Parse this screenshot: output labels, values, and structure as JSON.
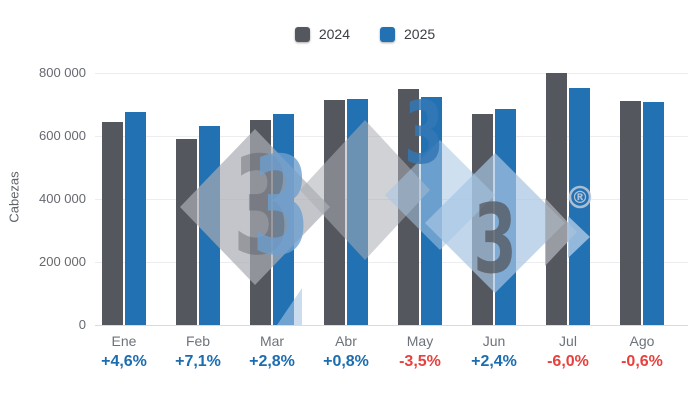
{
  "chart_data": {
    "type": "bar",
    "title": "",
    "ylabel": "Cabezas",
    "xlabel": "",
    "ylim": [
      0,
      800000
    ],
    "grid": true,
    "legend_position": "top-center",
    "categories": [
      "Ene",
      "Feb",
      "Mar",
      "Abr",
      "May",
      "Jun",
      "Jul",
      "Ago"
    ],
    "series": [
      {
        "name": "2024",
        "color": "#54575E",
        "values": [
          645000,
          590000,
          652000,
          713000,
          750000,
          670000,
          800000,
          711000
        ]
      },
      {
        "name": "2025",
        "color": "#2271B3",
        "values": [
          675000,
          632000,
          670000,
          719000,
          724000,
          686000,
          752000,
          707000
        ]
      }
    ],
    "yticks": [
      {
        "value": 0,
        "label": "0"
      },
      {
        "value": 200000,
        "label": "200 000"
      },
      {
        "value": 400000,
        "label": "400 000"
      },
      {
        "value": 600000,
        "label": "600 000"
      },
      {
        "value": 800000,
        "label": "800 000"
      }
    ],
    "change_row": [
      {
        "month": "Ene",
        "text": "+4,6%",
        "direction": "up"
      },
      {
        "month": "Feb",
        "text": "+7,1%",
        "direction": "up"
      },
      {
        "month": "Mar",
        "text": "+2,8%",
        "direction": "up"
      },
      {
        "month": "Abr",
        "text": "+0,8%",
        "direction": "up"
      },
      {
        "month": "May",
        "text": "-3,5%",
        "direction": "down"
      },
      {
        "month": "Jun",
        "text": "+2,4%",
        "direction": "up"
      },
      {
        "month": "Jul",
        "text": "-6,0%",
        "direction": "down"
      },
      {
        "month": "Ago",
        "text": "-0,6%",
        "direction": "down"
      }
    ]
  },
  "colors": {
    "positive": "#1B6DB0",
    "negative": "#E8403D",
    "grid": "#ECEDEE",
    "axis_line": "#D9DBDD",
    "tick_text": "#65696E",
    "month_text": "#6D737B",
    "legend_text": "#3C4045",
    "watermark_gray": "#A9ADB3",
    "watermark_light_blue": "#A6C4E3",
    "watermark_blue": "#3478B6",
    "watermark_dark": "#53565E"
  },
  "watermark": {
    "three": "3",
    "registered": "®"
  }
}
